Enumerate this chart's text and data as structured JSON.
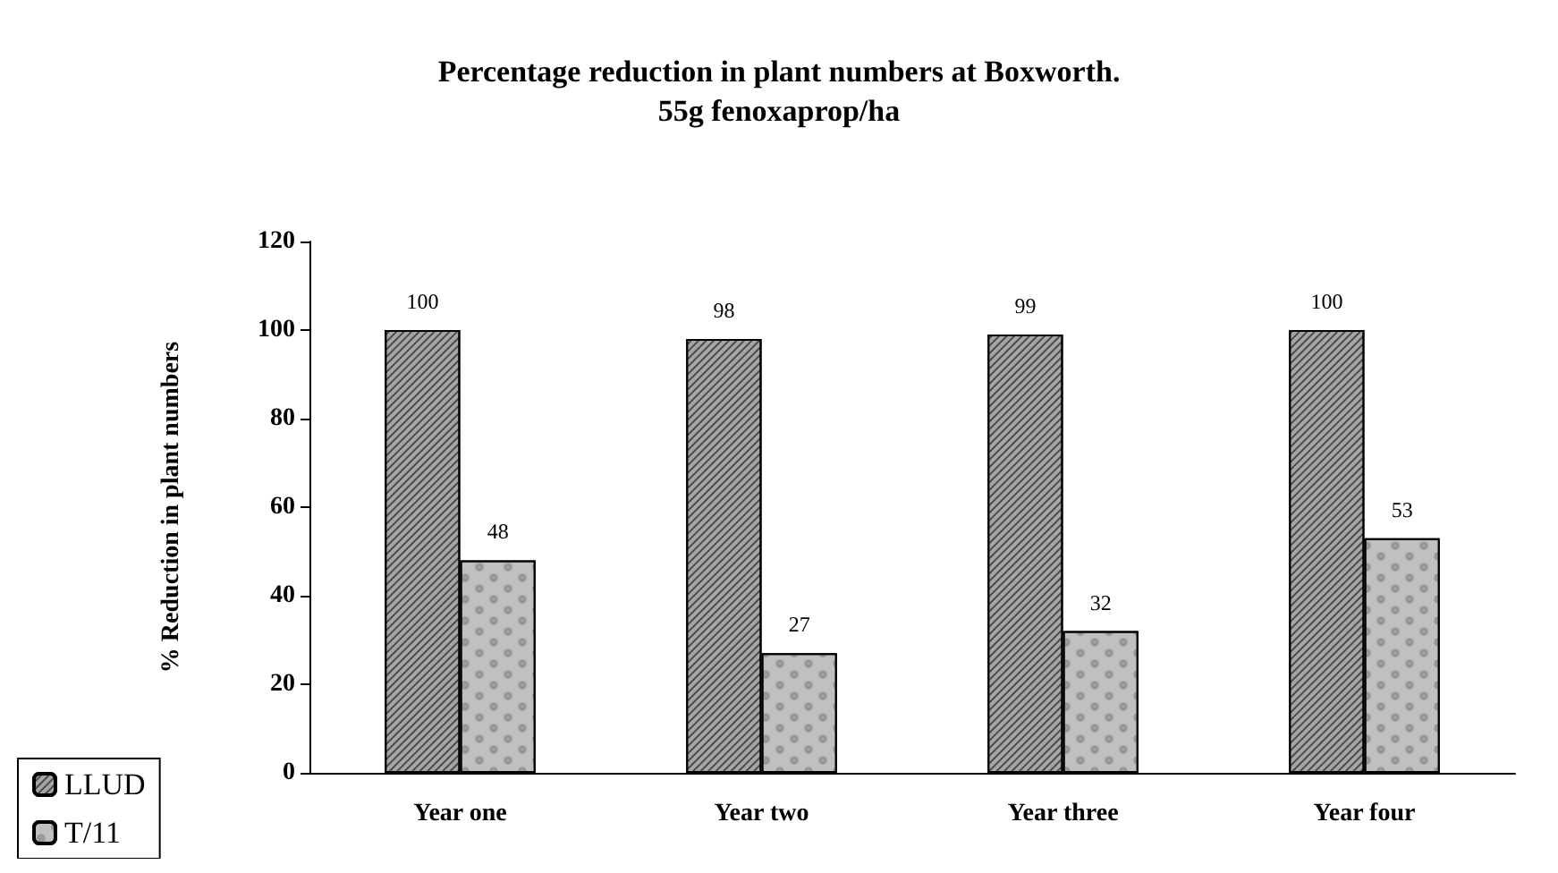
{
  "chart_data": {
    "type": "bar",
    "title": "Percentage reduction in plant numbers at Boxworth.\n55g fenoxaprop/ha",
    "ylabel": "% Reduction in plant numbers",
    "categories": [
      "Year one",
      "Year two",
      "Year three",
      "Year four"
    ],
    "series": [
      {
        "name": "LLUD",
        "color": "#a6a6a6",
        "values": [
          100,
          98,
          99,
          100
        ]
      },
      {
        "name": "T/11",
        "color": "#c0c0c0",
        "values": [
          48,
          27,
          32,
          53
        ]
      }
    ],
    "ylim": [
      0,
      120
    ],
    "yticks": [
      0,
      20,
      40,
      60,
      80,
      100,
      120
    ],
    "grid": false,
    "legend": "bottom left",
    "data_labels": true
  }
}
